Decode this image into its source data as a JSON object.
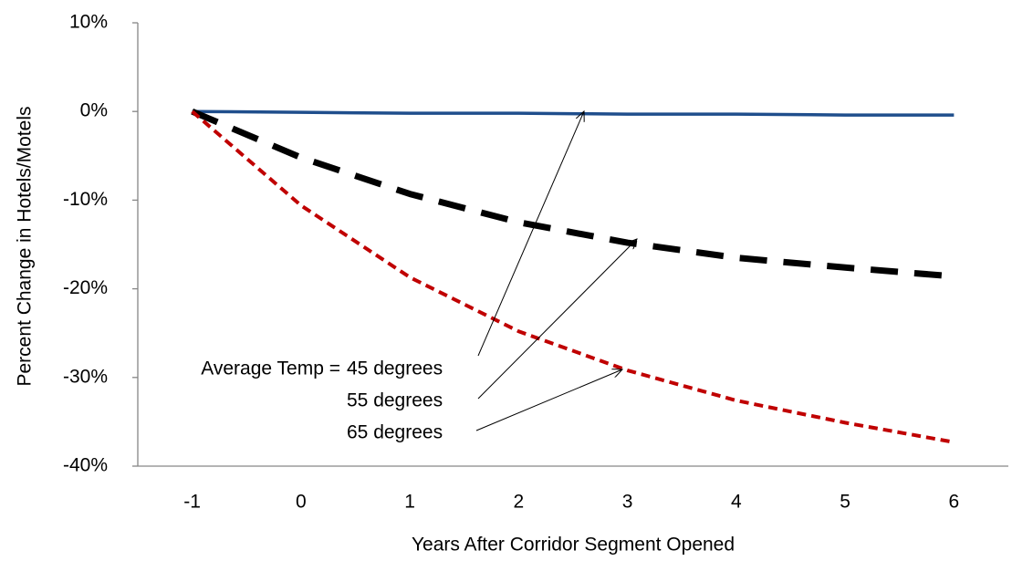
{
  "chart_data": {
    "type": "line",
    "x_label": "Years After Corridor Segment Opened",
    "y_label": "Percent Change in Hotels/Motels",
    "categories": [
      "-1",
      "0",
      "1",
      "2",
      "3",
      "4",
      "5",
      "6"
    ],
    "series": [
      {
        "name": "45 degrees",
        "color": "#1f4e8c",
        "dash": "solid",
        "values": [
          0,
          -0.1,
          -0.2,
          -0.2,
          -0.3,
          -0.3,
          -0.4,
          -0.4
        ]
      },
      {
        "name": "55 degrees",
        "color": "#000000",
        "dash": "long-dash",
        "values": [
          0,
          -5.2,
          -9.3,
          -12.5,
          -14.8,
          -16.5,
          -17.6,
          -18.6
        ]
      },
      {
        "name": "65 degrees",
        "color": "#c00000",
        "dash": "short-dash",
        "values": [
          0,
          -10.6,
          -18.7,
          -24.8,
          -29.2,
          -32.6,
          -35.1,
          -37.3
        ]
      }
    ],
    "annotation": "Average Temp =",
    "ylim": [
      -40,
      10
    ],
    "yticks": [
      {
        "value": 10,
        "label": "10%"
      },
      {
        "value": 0,
        "label": "0%"
      },
      {
        "value": -10,
        "label": "-10%"
      },
      {
        "value": -20,
        "label": "-20%"
      },
      {
        "value": -30,
        "label": "-30%"
      },
      {
        "value": -40,
        "label": "-40%"
      }
    ],
    "grid": false
  }
}
